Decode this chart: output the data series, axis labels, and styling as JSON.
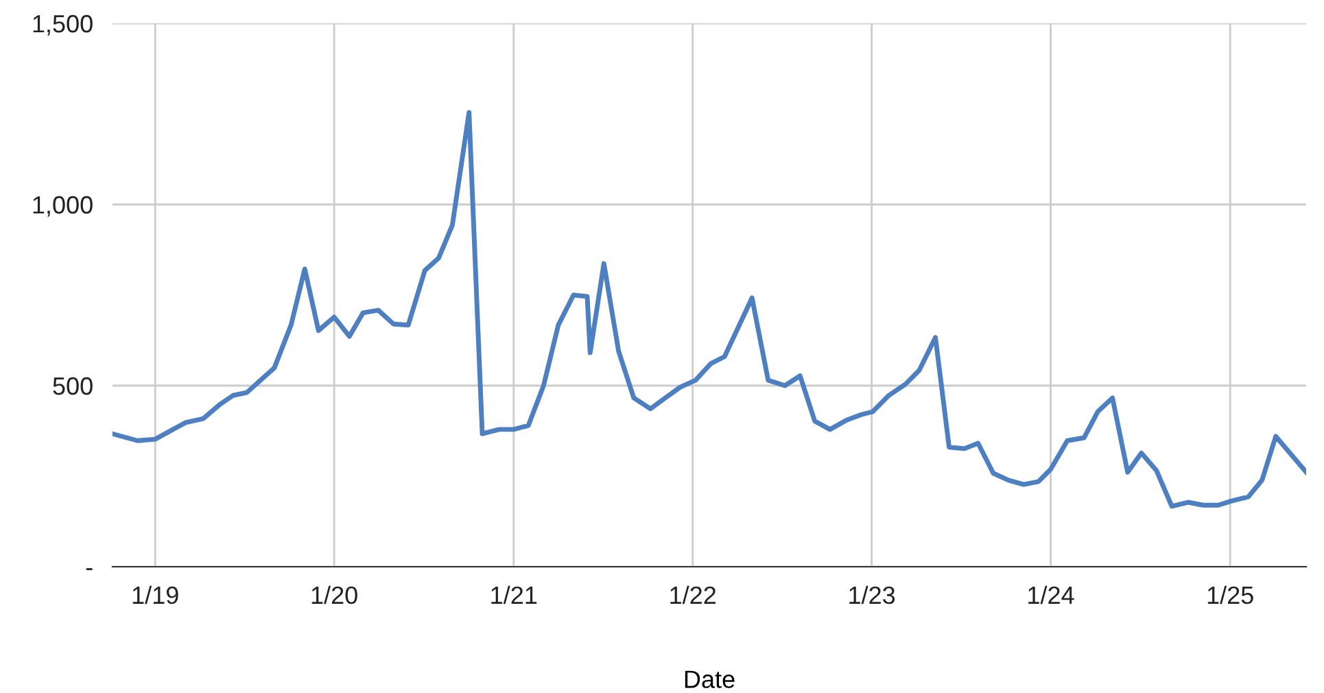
{
  "chart_data": {
    "type": "line",
    "xlabel": "Date",
    "color": "#4e80c1",
    "grid": true,
    "legend": false,
    "xlim": [
      "2018-10-06",
      "2025-06-05"
    ],
    "xticks": [
      {
        "value": "2019-01-01",
        "label": "1/19"
      },
      {
        "value": "2020-01-01",
        "label": "1/20"
      },
      {
        "value": "2021-01-01",
        "label": "1/21"
      },
      {
        "value": "2022-01-01",
        "label": "1/22"
      },
      {
        "value": "2023-01-01",
        "label": "1/23"
      },
      {
        "value": "2024-01-01",
        "label": "1/24"
      },
      {
        "value": "2025-01-01",
        "label": "1/25"
      }
    ],
    "ylim": [
      0,
      1500
    ],
    "yticks": [
      {
        "value": 0,
        "label": "-"
      },
      {
        "value": 500,
        "label": "500"
      },
      {
        "value": 1000,
        "label": "1,000"
      },
      {
        "value": 1500,
        "label": "1,500"
      }
    ],
    "x": [
      "2018-10-06",
      "2018-11-26",
      "2019-01-01",
      "2019-03-04",
      "2019-04-09",
      "2019-05-12",
      "2019-06-09",
      "2019-07-07",
      "2019-09-01",
      "2019-10-05",
      "2019-11-02",
      "2019-11-30",
      "2020-01-01",
      "2020-02-01",
      "2020-02-29",
      "2020-03-31",
      "2020-05-01",
      "2020-05-31",
      "2020-07-04",
      "2020-08-01",
      "2020-08-29",
      "2020-10-02",
      "2020-10-29",
      "2020-12-02",
      "2021-01-01",
      "2021-01-31",
      "2021-03-03",
      "2021-04-02",
      "2021-05-03",
      "2021-05-31",
      "2021-06-06",
      "2021-07-04",
      "2021-08-03",
      "2021-09-03",
      "2021-10-07",
      "2021-11-06",
      "2021-12-07",
      "2022-01-07",
      "2022-02-07",
      "2022-03-07",
      "2022-05-02",
      "2022-06-04",
      "2022-07-08",
      "2022-08-08",
      "2022-09-07",
      "2022-10-08",
      "2022-11-11",
      "2022-12-11",
      "2023-01-03",
      "2023-02-05",
      "2023-03-11",
      "2023-04-08",
      "2023-05-11",
      "2023-06-08",
      "2023-07-09",
      "2023-08-06",
      "2023-09-06",
      "2023-10-07",
      "2023-11-07",
      "2023-12-07",
      "2024-01-01",
      "2024-02-04",
      "2024-03-09",
      "2024-04-06",
      "2024-05-06",
      "2024-06-06",
      "2024-07-04",
      "2024-08-04",
      "2024-09-04",
      "2024-10-07",
      "2024-11-07",
      "2024-12-08",
      "2025-01-05",
      "2025-02-07",
      "2025-03-07",
      "2025-04-04",
      "2025-06-05"
    ],
    "values": [
      367,
      348,
      352,
      398,
      409,
      447,
      473,
      481,
      549,
      667,
      822,
      652,
      689,
      636,
      701,
      708,
      670,
      667,
      818,
      852,
      943,
      1254,
      367,
      379,
      379,
      390,
      500,
      667,
      750,
      746,
      591,
      837,
      595,
      466,
      436,
      466,
      496,
      515,
      561,
      580,
      742,
      515,
      500,
      527,
      402,
      379,
      405,
      420,
      428,
      473,
      504,
      542,
      633,
      330,
      326,
      341,
      258,
      239,
      227,
      235,
      269,
      348,
      356,
      428,
      466,
      261,
      314,
      265,
      167,
      178,
      170,
      170,
      182,
      193,
      239,
      360,
      261
    ]
  }
}
